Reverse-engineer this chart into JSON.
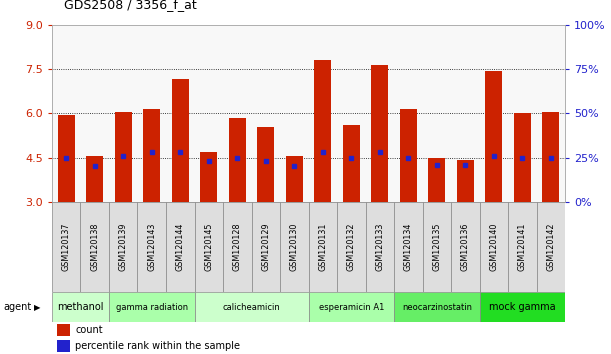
{
  "title": "GDS2508 / 3356_f_at",
  "samples": [
    "GSM120137",
    "GSM120138",
    "GSM120139",
    "GSM120143",
    "GSM120144",
    "GSM120145",
    "GSM120128",
    "GSM120129",
    "GSM120130",
    "GSM120131",
    "GSM120132",
    "GSM120133",
    "GSM120134",
    "GSM120135",
    "GSM120136",
    "GSM120140",
    "GSM120141",
    "GSM120142"
  ],
  "bar_values": [
    5.95,
    4.55,
    6.05,
    6.15,
    7.15,
    4.7,
    5.85,
    5.55,
    4.55,
    7.8,
    5.6,
    7.65,
    6.15,
    4.5,
    4.4,
    7.45,
    6.0,
    6.05
  ],
  "percentile_pct": [
    25,
    20,
    26,
    28,
    28,
    23,
    25,
    23,
    20,
    28,
    25,
    28,
    25,
    21,
    21,
    26,
    25,
    25
  ],
  "ymin": 3.0,
  "ymax": 9.0,
  "yticks_left": [
    3,
    4.5,
    6,
    7.5,
    9
  ],
  "yticks_right": [
    0,
    25,
    50,
    75,
    100
  ],
  "bar_color": "#cc2200",
  "dot_color": "#2222cc",
  "agents": [
    {
      "label": "methanol",
      "start": 0,
      "end": 2,
      "color": "#ccffcc"
    },
    {
      "label": "gamma radiation",
      "start": 2,
      "end": 5,
      "color": "#aaffaa"
    },
    {
      "label": "calicheamicin",
      "start": 5,
      "end": 9,
      "color": "#ccffcc"
    },
    {
      "label": "esperamicin A1",
      "start": 9,
      "end": 12,
      "color": "#aaffaa"
    },
    {
      "label": "neocarzinostatin",
      "start": 12,
      "end": 15,
      "color": "#66ee66"
    },
    {
      "label": "mock gamma",
      "start": 15,
      "end": 18,
      "color": "#22dd22"
    }
  ],
  "left_axis_color": "#cc2200",
  "right_axis_color": "#2222cc"
}
